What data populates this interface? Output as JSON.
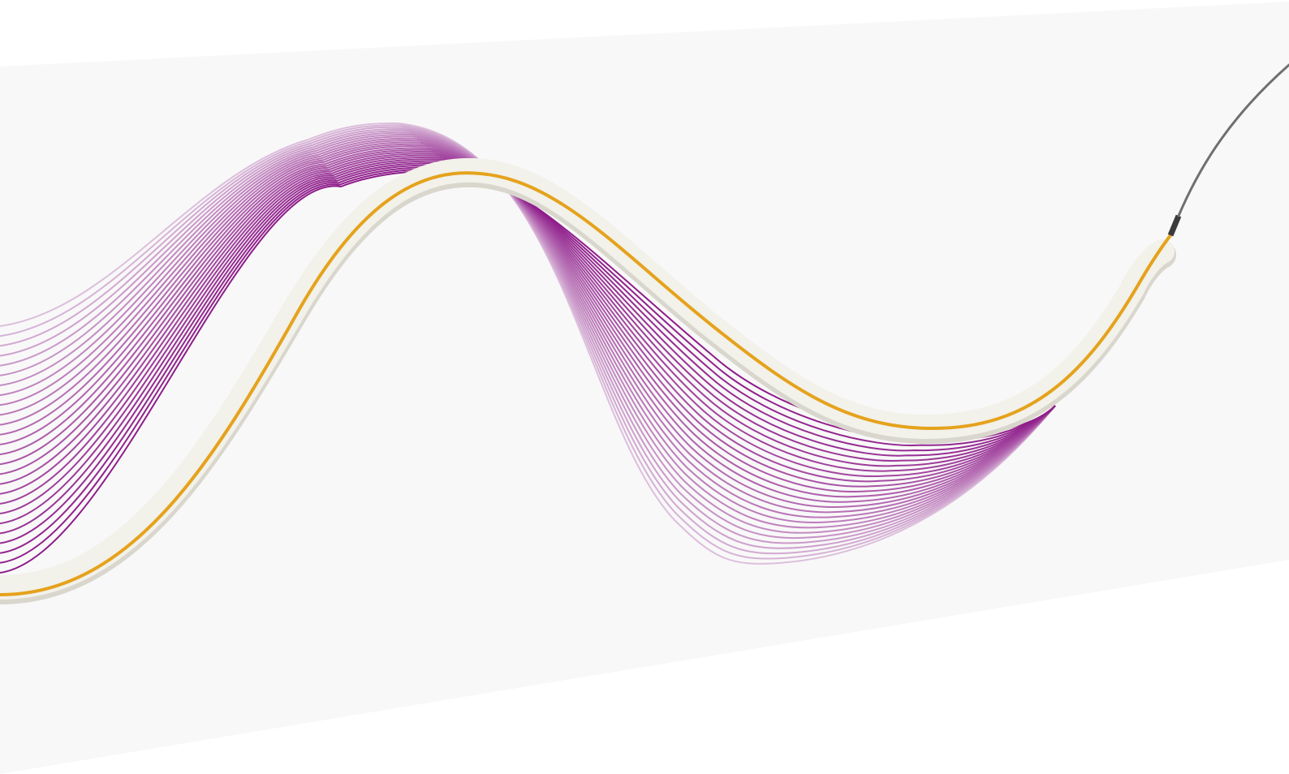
{
  "image": {
    "subject": "catheter-with-balloon-and-motion-lines",
    "colors": {
      "background": "#ffffff",
      "panel": "#f8f8f8",
      "motion_line": "#8e1c8a",
      "motion_line_light": "#dcbfdc",
      "catheter_body": "#f2f1ea",
      "catheter_shadow": "#d9d7cd",
      "catheter_stripe": "#e5a21c",
      "guidewire": "#6f6f72",
      "marker_band": "#3a3a3a"
    },
    "motion_line_count": 26
  }
}
